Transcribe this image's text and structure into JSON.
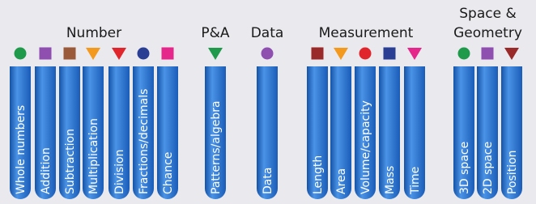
{
  "groups": [
    {
      "title": [
        "Number"
      ],
      "items": [
        {
          "label": "Whole numbers",
          "shape": "circle",
          "color": "#1e9a4a"
        },
        {
          "label": "Addition",
          "shape": "square",
          "color": "#8e4fb0"
        },
        {
          "label": "Subtraction",
          "shape": "square",
          "color": "#9a5a3a"
        },
        {
          "label": "Multiplication",
          "shape": "triangle",
          "color": "#f39a1e"
        },
        {
          "label": "Division",
          "shape": "triangle",
          "color": "#e0262c"
        },
        {
          "label": "Fractions/decimals",
          "shape": "circle",
          "color": "#2a3e94"
        },
        {
          "label": "Chance",
          "shape": "square",
          "color": "#e5268a"
        }
      ]
    },
    {
      "title": [
        "P&A"
      ],
      "items": [
        {
          "label": "Patterns/algebra",
          "shape": "triangle",
          "color": "#1e9a4a"
        }
      ]
    },
    {
      "title": [
        "Data"
      ],
      "items": [
        {
          "label": "Data",
          "shape": "circle",
          "color": "#8e4fb0"
        }
      ]
    },
    {
      "title": [
        "Measurement"
      ],
      "items": [
        {
          "label": "Length",
          "shape": "square",
          "color": "#9a2a2a"
        },
        {
          "label": "Area",
          "shape": "triangle",
          "color": "#f39a1e"
        },
        {
          "label": "Volume/capacity",
          "shape": "circle",
          "color": "#e0262c"
        },
        {
          "label": "Mass",
          "shape": "square",
          "color": "#2a3e94"
        },
        {
          "label": "Time",
          "shape": "triangle",
          "color": "#e5268a"
        }
      ]
    },
    {
      "title": [
        "Space &",
        "Geometry"
      ],
      "items": [
        {
          "label": "3D space",
          "shape": "circle",
          "color": "#1e9a4a"
        },
        {
          "label": "2D space",
          "shape": "square",
          "color": "#8e4fb0"
        },
        {
          "label": "Position",
          "shape": "triangle",
          "color": "#9a2a2a"
        }
      ]
    }
  ]
}
